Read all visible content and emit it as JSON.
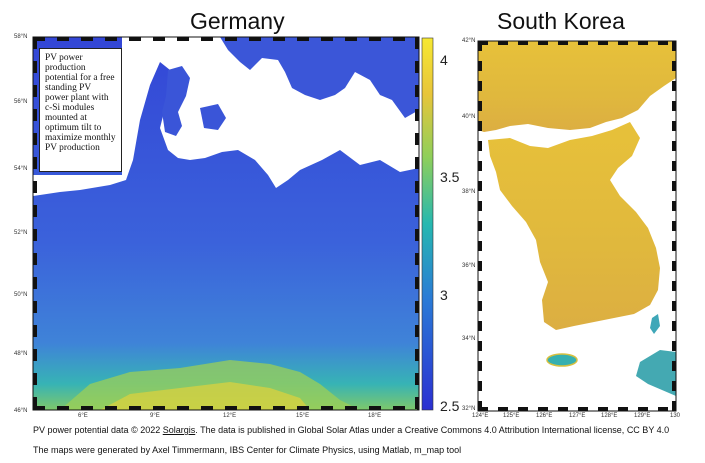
{
  "titles": {
    "germany": "Germany",
    "korea": "South Korea"
  },
  "germany_map": {
    "lat_ticks": [
      "58°N",
      "56°N",
      "54°N",
      "52°N",
      "50°N",
      "48°N",
      "46°N"
    ],
    "lon_ticks": [
      "6°E",
      "9°E",
      "12°E",
      "15°E",
      "18°E"
    ],
    "annotation": "PV power production potential for a free standing PV power plant with c-Si modules mounted at optimum tilt to maximize monthly PV production"
  },
  "korea_map": {
    "lat_ticks": [
      "42°N",
      "40°N",
      "38°N",
      "36°N",
      "34°N",
      "32°N"
    ],
    "lon_ticks": [
      "124°E",
      "125°E",
      "126°E",
      "127°E",
      "128°E",
      "129°E",
      "130"
    ]
  },
  "colorbar": {
    "ticks": [
      "4",
      "3.5",
      "3",
      "2.5"
    ],
    "colors": [
      "#2b2fd1",
      "#2a7bd6",
      "#26b8b0",
      "#8fcf5a",
      "#e8c53a",
      "#f6e832"
    ]
  },
  "footer": {
    "line1_pre": "PV power potential data © 2022 ",
    "line1_link": "Solargis",
    "line1_post": ". The data is published in Global Solar Atlas under a Creative Commons 4.0 Attribution International license, CC BY 4.0",
    "line2": "The maps were generated by Axel Timmermann, IBS Center for Climate Physics, using Matlab, m_map tool"
  }
}
